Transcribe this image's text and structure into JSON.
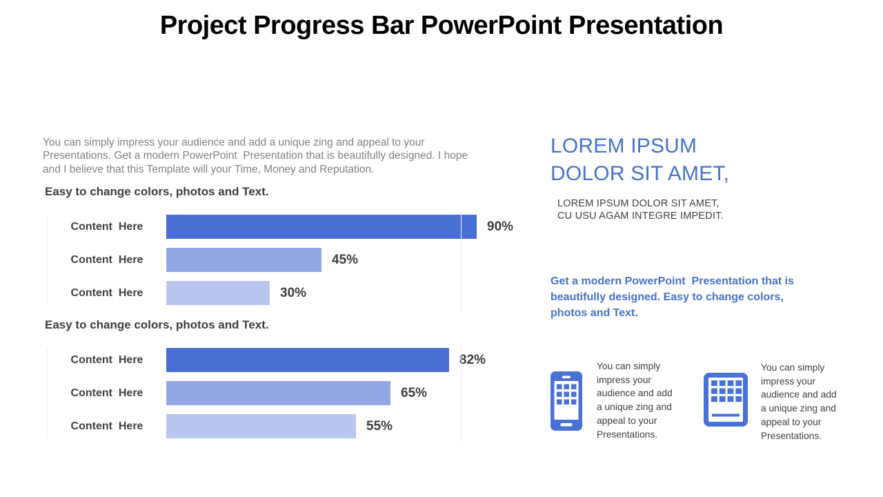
{
  "slide": {
    "title": "Project Progress Bar PowerPoint Presentation"
  },
  "left": {
    "intro": "You can simply impress your audience and add a unique zing and appeal to your\nPresentations. Get a modern PowerPoint  Presentation that is beautifully designed. I hope\nand I believe that this Template will your Time, Money and Reputation."
  },
  "chart_data": [
    {
      "type": "bar",
      "orientation": "horizontal",
      "title": "Easy to change colors, photos and Text.",
      "categories": [
        "Content  Here",
        "Content  Here",
        "Content  Here"
      ],
      "values": [
        90,
        45,
        30
      ],
      "value_labels": [
        "90%",
        "45%",
        "30%"
      ],
      "xlim": [
        0,
        100
      ],
      "grid": false,
      "legend": false,
      "bar_colors": [
        "#4A6FD4",
        "#93A7E4",
        "#B9C6EE"
      ]
    },
    {
      "type": "bar",
      "orientation": "horizontal",
      "title": "Easy to change colors, photos and Text.",
      "categories": [
        "Content  Here",
        "Content  Here",
        "Content  Here"
      ],
      "values": [
        82,
        65,
        55
      ],
      "value_labels": [
        "82%",
        "65%",
        "55%"
      ],
      "xlim": [
        0,
        100
      ],
      "grid": false,
      "legend": false,
      "bar_colors": [
        "#4A6FD4",
        "#93A7E4",
        "#B9C6EE"
      ]
    }
  ],
  "right": {
    "heading": "LOREM IPSUM\nDOLOR SIT AMET,",
    "subheading": "LOREM IPSUM DOLOR SIT AMET,\nCU USU AGAM INTEGRE IMPEDIT.",
    "blurb": "Get a modern PowerPoint  Presentation that is\nbeautifully designed. Easy to change colors,\nphotos and Text.",
    "features": [
      {
        "icon": "smartphone-icon",
        "text": "You can simply\nimpress your\naudience and add\na unique zing and\nappeal to your\nPresentations."
      },
      {
        "icon": "tablet-icon",
        "text": "You can simply\nimpress your\naudience and add\na unique zing and\nappeal to your\nPresentations."
      }
    ]
  },
  "colors": {
    "accent_text_blue": "#4573C9",
    "bar_dark": "#4A6FD4",
    "bar_medium": "#93A7E4",
    "bar_light": "#B9C6EE",
    "icon_blue": "#4A72D6",
    "title_black": "#000000",
    "body_gray": "#818181",
    "label_dark": "#404040"
  }
}
